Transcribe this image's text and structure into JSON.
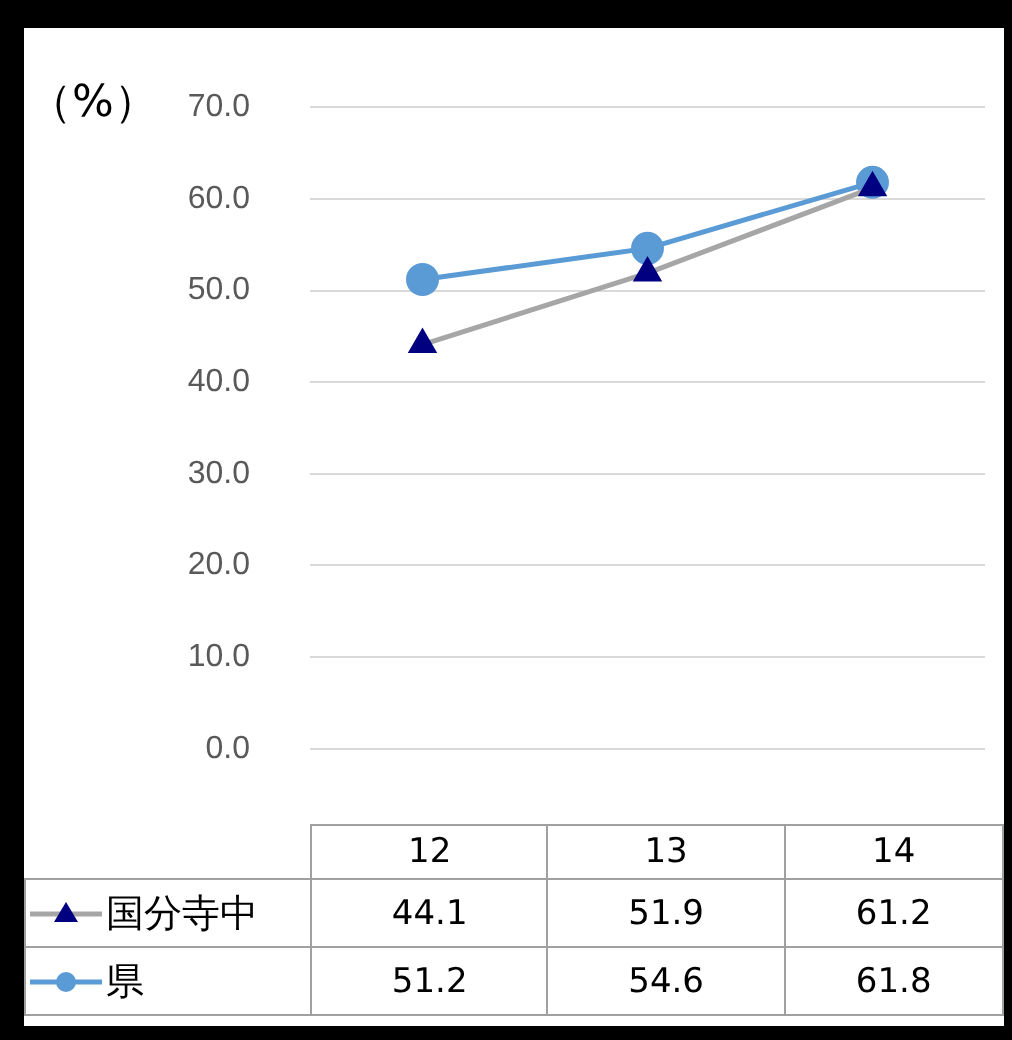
{
  "chart_data": {
    "type": "line",
    "ylabel": "（%）",
    "categories": [
      "12",
      "13",
      "14"
    ],
    "series": [
      {
        "name": "国分寺中",
        "color": "#a6a6a6",
        "marker": "triangle",
        "values": [
          44.1,
          51.9,
          61.2
        ]
      },
      {
        "name": "県",
        "color": "#5b9bd5",
        "marker": "circle",
        "values": [
          51.2,
          54.6,
          61.8
        ]
      }
    ],
    "ylim": [
      0,
      70
    ],
    "yticks": [
      {
        "value": 0,
        "label": "0.0"
      },
      {
        "value": 10,
        "label": "10.0"
      },
      {
        "value": 20,
        "label": "20.0"
      },
      {
        "value": 30,
        "label": "30.0"
      },
      {
        "value": 40,
        "label": "40.0"
      },
      {
        "value": 50,
        "label": "50.0"
      },
      {
        "value": 60,
        "label": "60.0"
      },
      {
        "value": 70,
        "label": "70.0"
      }
    ],
    "grid": "y",
    "legend": "bottom",
    "data_labels": true
  }
}
